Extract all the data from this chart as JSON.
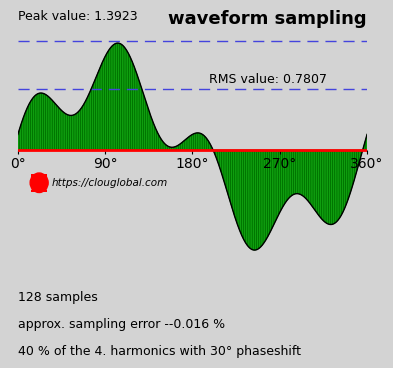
{
  "title": "waveform sampling",
  "peak_value": 1.3923,
  "rms_value": 0.7807,
  "peak_label": "Peak value: 1.3923",
  "rms_label": "RMS value: 0.7807",
  "x_ticks": [
    0,
    90,
    180,
    270,
    360
  ],
  "x_tick_labels": [
    "0°",
    "90°",
    "180°",
    "270°",
    "360°"
  ],
  "n_samples": 128,
  "harmonic_percent": 40,
  "harmonic_num": 4,
  "phase_shift": 30,
  "url": "https://clouglobal.com",
  "info_line1": "128 samples",
  "info_line2": "approx. sampling error --0.016 %",
  "info_line3": "40 % of the 4. harmonics with 30° phaseshift",
  "bg_color": "#d3d3d3",
  "waveform_line_color": "#000000",
  "fill_color": "#22cc22",
  "hatch_color": "#007700",
  "zero_line_color": "#ff0000",
  "dashed_line_color": "#4444dd",
  "title_fontsize": 13,
  "annotation_fontsize": 9,
  "ylim_min": -1.65,
  "ylim_max": 1.75
}
